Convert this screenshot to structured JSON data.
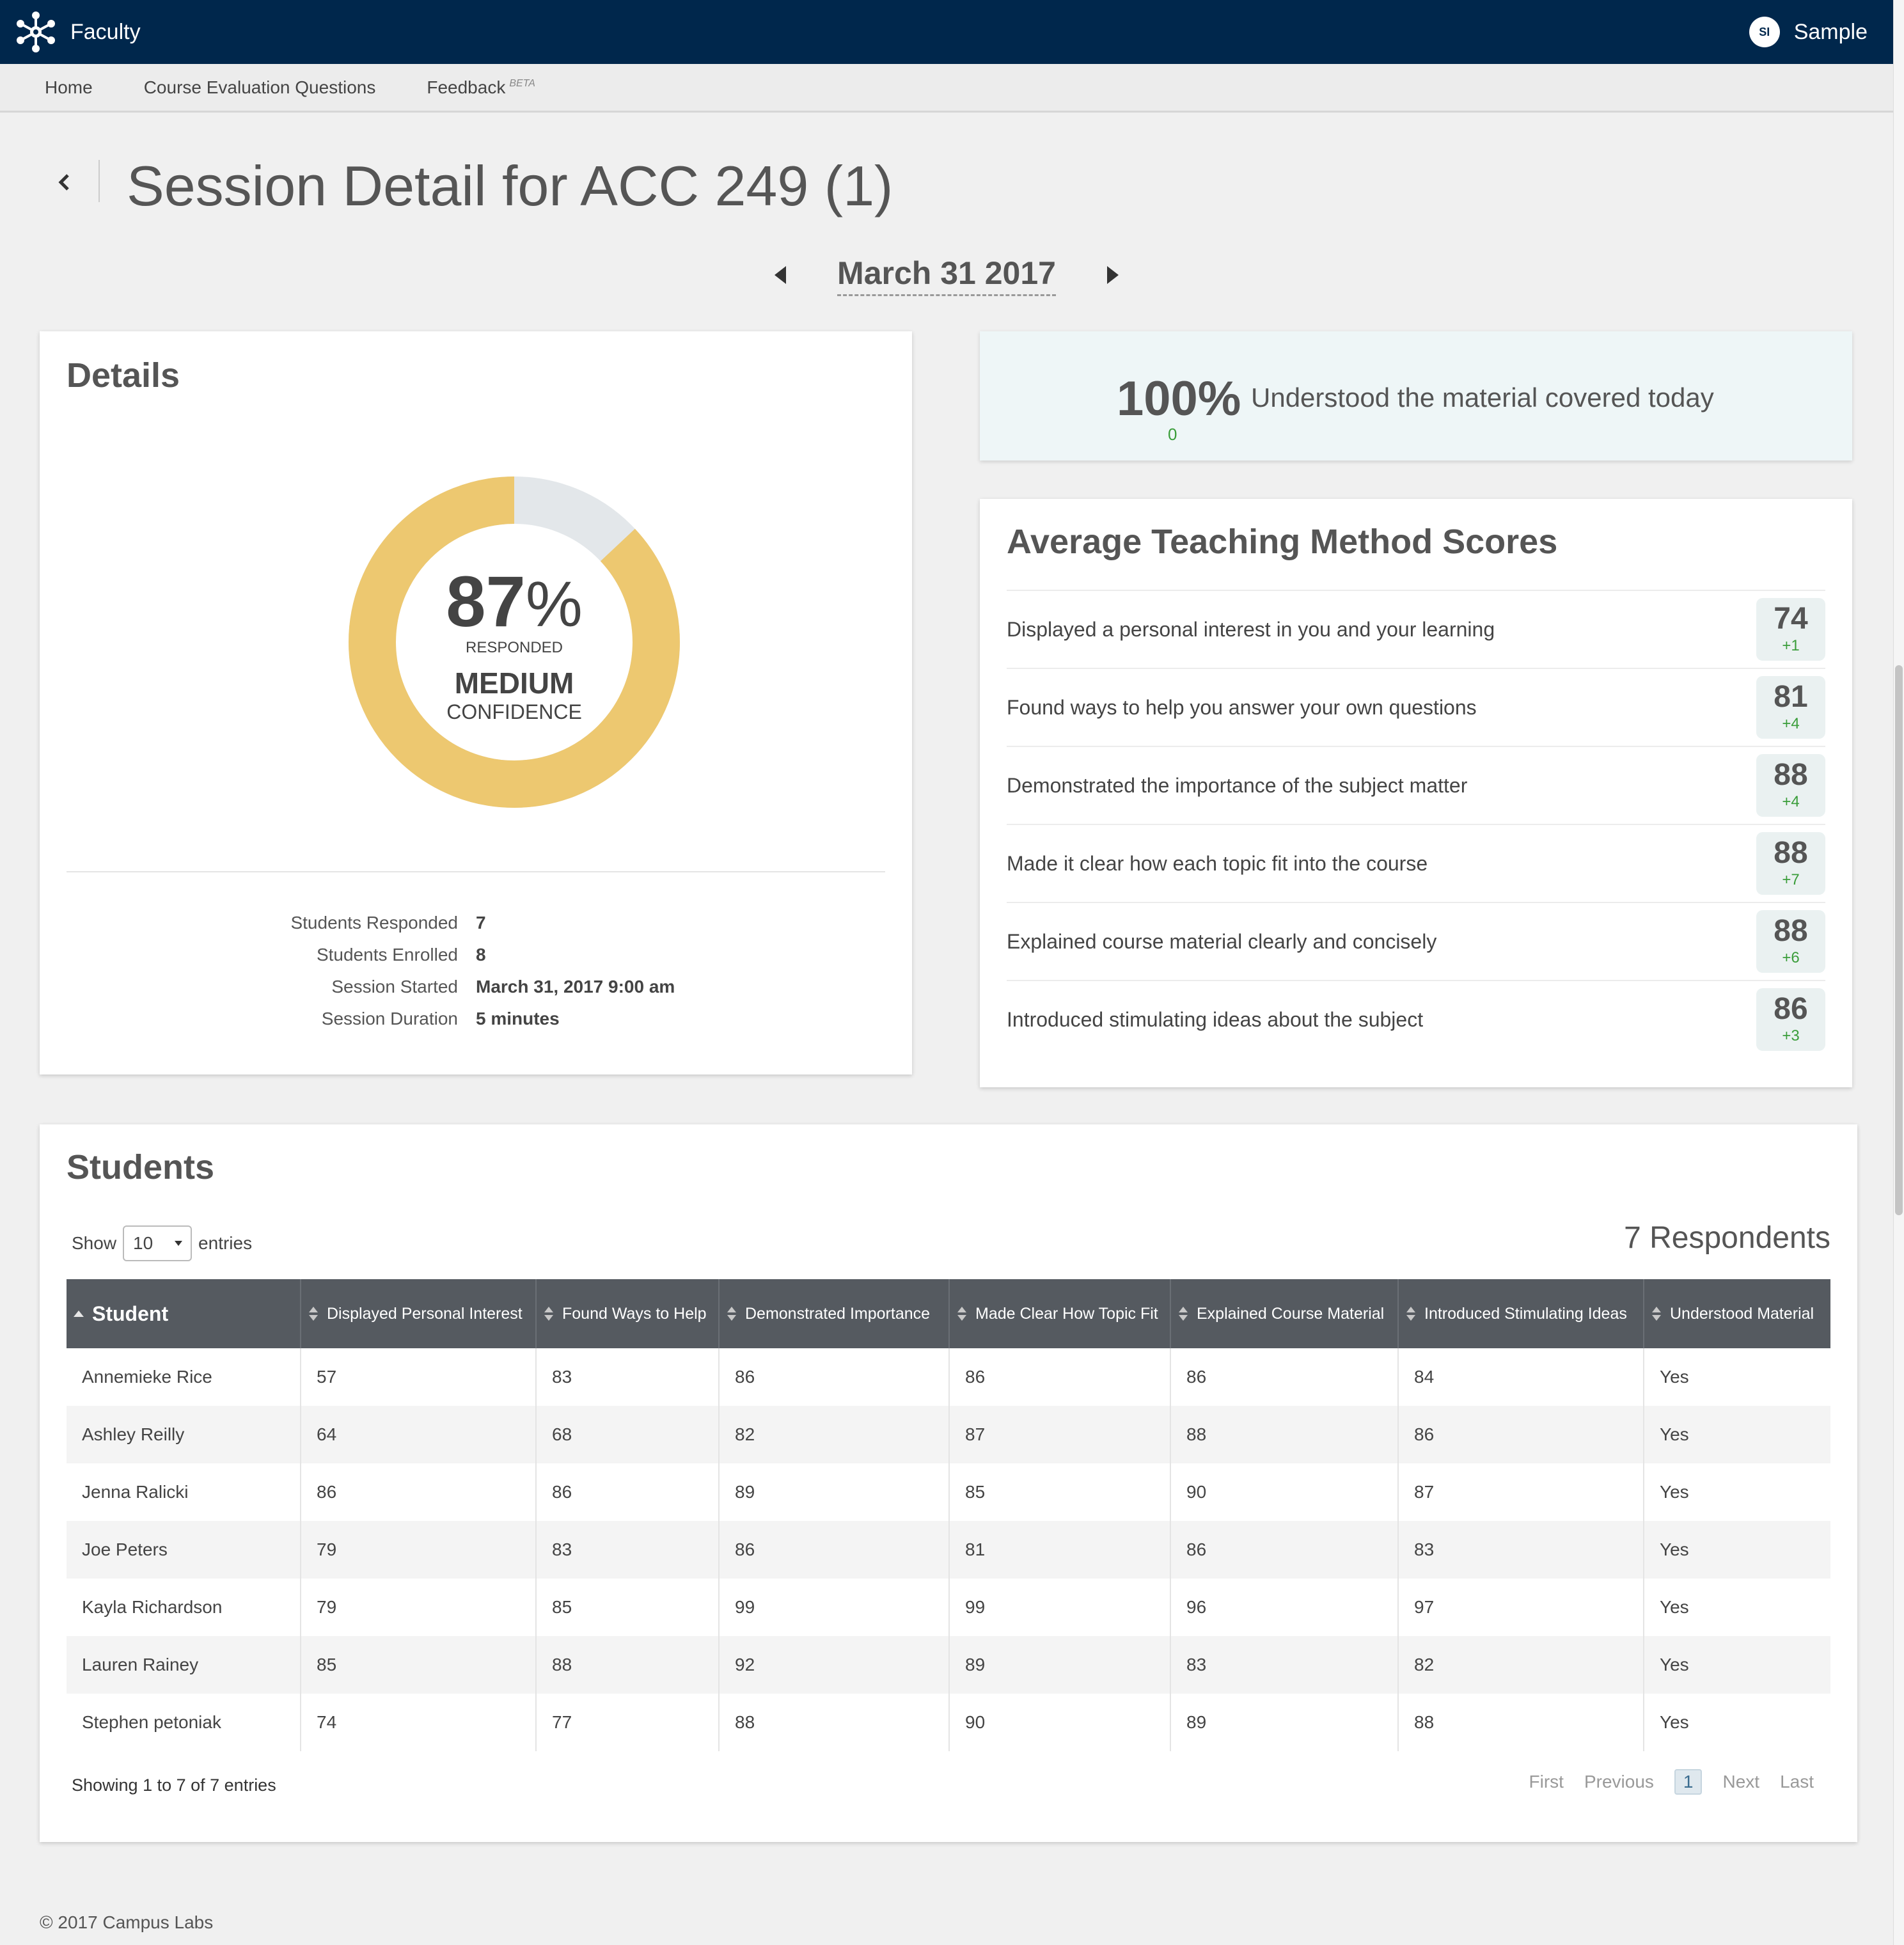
{
  "app": {
    "name": "Faculty"
  },
  "user": {
    "initials": "SI",
    "name": "Sample"
  },
  "nav": {
    "items": [
      {
        "label": "Home"
      },
      {
        "label": "Course Evaluation Questions"
      },
      {
        "label": "Feedback",
        "sup": "BETA"
      }
    ]
  },
  "page": {
    "title": "Session Detail for ACC 249 (1)"
  },
  "date_nav": {
    "label": "March 31 2017"
  },
  "details": {
    "title": "Details",
    "donut": {
      "percent": 87,
      "percent_label": "87",
      "percent_sign": "%",
      "responded_label": "RESPONDED",
      "confidence_level": "MEDIUM",
      "confidence_label": "CONFIDENCE",
      "fill_color": "#edc870",
      "track_color": "#e3e7ea"
    },
    "stats": [
      {
        "label": "Students Responded",
        "value": "7"
      },
      {
        "label": "Students Enrolled",
        "value": "8"
      },
      {
        "label": "Session Started",
        "value": "March 31, 2017 9:00 am"
      },
      {
        "label": "Session Duration",
        "value": "5 minutes"
      }
    ]
  },
  "understood": {
    "percent": "100%",
    "delta": "0",
    "text": "Understood the material covered today"
  },
  "scores": {
    "title": "Average Teaching Method Scores",
    "items": [
      {
        "label": "Displayed a personal interest in you and your learning",
        "score": "74",
        "delta": "+1"
      },
      {
        "label": "Found ways to help you answer your own questions",
        "score": "81",
        "delta": "+4"
      },
      {
        "label": "Demonstrated the importance of the subject matter",
        "score": "88",
        "delta": "+4"
      },
      {
        "label": "Made it clear how each topic fit into the course",
        "score": "88",
        "delta": "+7"
      },
      {
        "label": "Explained course material clearly and concisely",
        "score": "88",
        "delta": "+6"
      },
      {
        "label": "Introduced stimulating ideas about the subject",
        "score": "86",
        "delta": "+3"
      }
    ]
  },
  "students": {
    "title": "Students",
    "show_label": "Show",
    "entries_label": "entries",
    "page_size": "10",
    "respondents": "7 Respondents",
    "columns": [
      "Student",
      "Displayed Personal Interest",
      "Found Ways to Help",
      "Demonstrated Importance",
      "Made Clear How Topic Fit",
      "Explained Course Material",
      "Introduced Stimulating Ideas",
      "Understood Material"
    ],
    "rows": [
      [
        "Annemieke Rice",
        "57",
        "83",
        "86",
        "86",
        "86",
        "84",
        "Yes"
      ],
      [
        "Ashley Reilly",
        "64",
        "68",
        "82",
        "87",
        "88",
        "86",
        "Yes"
      ],
      [
        "Jenna Ralicki",
        "86",
        "86",
        "89",
        "85",
        "90",
        "87",
        "Yes"
      ],
      [
        "Joe Peters",
        "79",
        "83",
        "86",
        "81",
        "86",
        "83",
        "Yes"
      ],
      [
        "Kayla Richardson",
        "79",
        "85",
        "99",
        "99",
        "96",
        "97",
        "Yes"
      ],
      [
        "Lauren Rainey",
        "85",
        "88",
        "92",
        "89",
        "83",
        "82",
        "Yes"
      ],
      [
        "Stephen petoniak",
        "74",
        "77",
        "88",
        "90",
        "89",
        "88",
        "Yes"
      ]
    ],
    "showing": "Showing 1 to 7 of 7 entries",
    "pager": {
      "first": "First",
      "previous": "Previous",
      "current": "1",
      "next": "Next",
      "last": "Last"
    }
  },
  "footer": {
    "text": "© 2017 Campus Labs"
  }
}
